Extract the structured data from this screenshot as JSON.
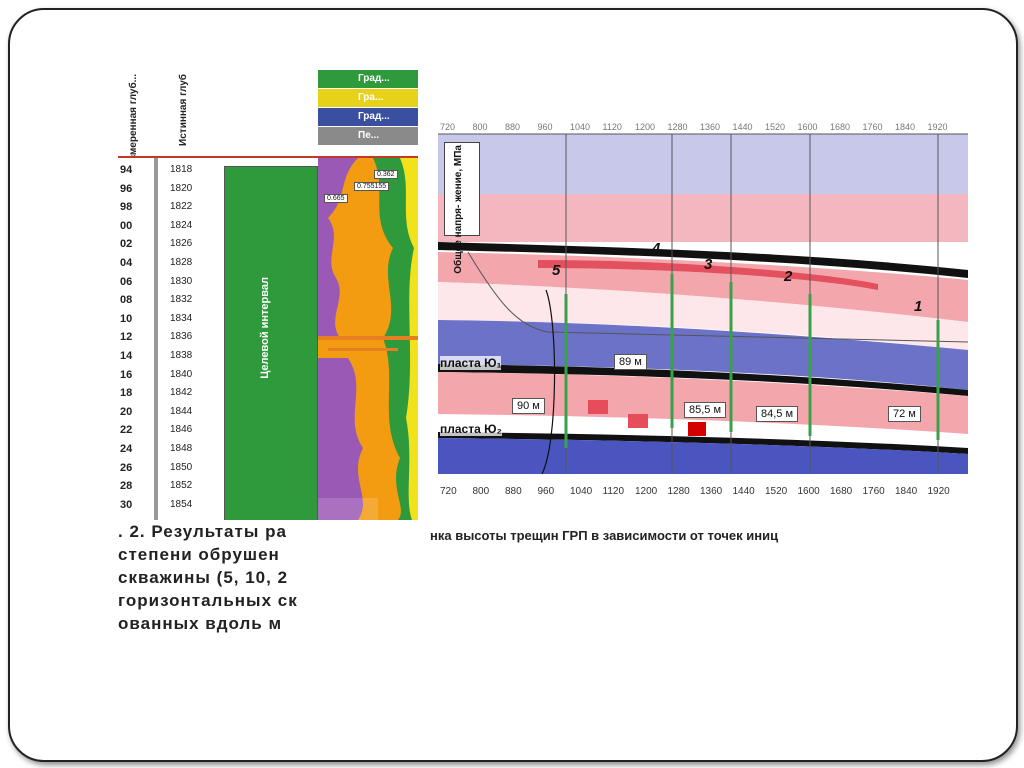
{
  "left_panel": {
    "header_col1": "...измеренная глуб...",
    "header_col2": "Истинная глуб",
    "legend_bars": [
      {
        "label": "Град...",
        "color": "#2e9a3c"
      },
      {
        "label": "Гра...",
        "color": "#e7d21a"
      },
      {
        "label": "Град...",
        "color": "#3a4fa0"
      },
      {
        "label": "Пе...",
        "color": "#8a8a8a"
      }
    ],
    "depth_ticks": [
      "94",
      "96",
      "98",
      "00",
      "02",
      "04",
      "06",
      "08",
      "10",
      "12",
      "14",
      "16",
      "18",
      "20",
      "22",
      "24",
      "26",
      "28",
      "30"
    ],
    "tvd_ticks": [
      "1818",
      "1820",
      "1822",
      "1824",
      "1826",
      "1828",
      "1830",
      "1832",
      "1834",
      "1836",
      "1838",
      "1840",
      "1842",
      "1844",
      "1846",
      "1848",
      "1850",
      "1852",
      "1854"
    ],
    "interval_label": "Целевой интервал",
    "log_annotations": [
      "0.362",
      "0.755155",
      "0.665"
    ]
  },
  "right_panel": {
    "top_axis": [
      "720",
      "800",
      "880",
      "960",
      "1040",
      "1120",
      "1200",
      "1280",
      "1360",
      "1440",
      "1520",
      "1600",
      "1680",
      "1760",
      "1840",
      "1920"
    ],
    "bottom_axis": [
      "720",
      "800",
      "880",
      "960",
      "1040",
      "1120",
      "1200",
      "1280",
      "1360",
      "1440",
      "1520",
      "1600",
      "1680",
      "1760",
      "1840",
      "1920"
    ],
    "stress_label": "Общее напря-\nжение, МПа",
    "point_numbers": [
      "5",
      "4",
      "3",
      "2",
      "1"
    ],
    "formation_labels": [
      "пласта Ю₁",
      "пласта Ю₂"
    ],
    "heights": [
      "90 м",
      "89 м",
      "85,5 м",
      "84,5 м",
      "72 м"
    ]
  },
  "caption_left": [
    ". 2. Результаты ра",
    "степени обрушен",
    "скважины (5, 10, 2",
    "горизонтальных ск",
    "ованных вдоль м"
  ],
  "caption_right": "нка высоты трещин ГРП в зависимости от точек иниц"
}
